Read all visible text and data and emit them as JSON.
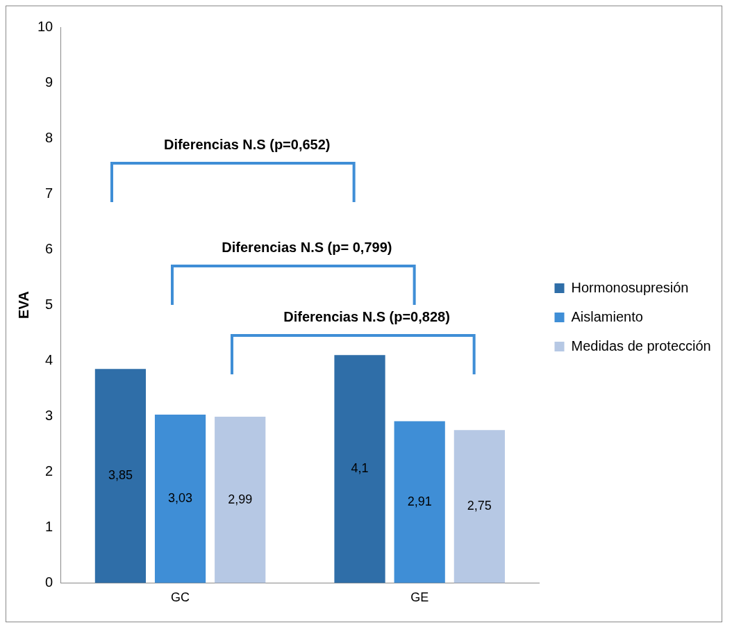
{
  "chart_data": {
    "type": "bar",
    "ylabel": "EVA",
    "categories": [
      "GC",
      "GE"
    ],
    "series": [
      {
        "name": "Hormonosupresión",
        "color": "#2f6ea8",
        "values": [
          3.85,
          4.1
        ],
        "value_labels": [
          "3,85",
          "4,1"
        ]
      },
      {
        "name": "Aislamiento",
        "color": "#3f8ed6",
        "values": [
          3.03,
          2.91
        ],
        "value_labels": [
          "3,03",
          "2,91"
        ]
      },
      {
        "name": "Medidas de protección",
        "color": "#b6c8e4",
        "values": [
          2.99,
          2.75
        ],
        "value_labels": [
          "2,99",
          "2,75"
        ]
      }
    ],
    "ylim": [
      0,
      10
    ],
    "yticks": [
      0,
      1,
      2,
      3,
      4,
      5,
      6,
      7,
      8,
      9,
      10
    ],
    "grid": false,
    "legend": "right",
    "annotations": [
      "Diferencias N.S (p=0,652)",
      "Diferencias N.S (p= 0,799)",
      "Diferencias N.S (p=0,828)"
    ]
  }
}
